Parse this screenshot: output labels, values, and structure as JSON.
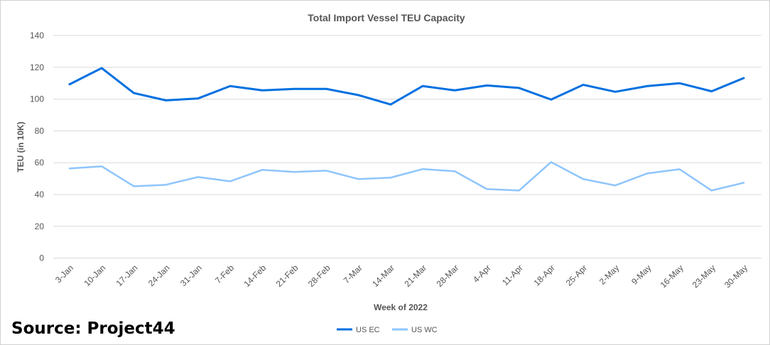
{
  "chart_data": {
    "type": "line",
    "title": "Total Import Vessel TEU Capacity",
    "xlabel": "Week of 2022",
    "ylabel": "TEU (in 10K)",
    "ylim": [
      0,
      140
    ],
    "yticks": [
      0,
      20,
      40,
      60,
      80,
      100,
      120,
      140
    ],
    "grid": true,
    "legend_position": "bottom",
    "categories": [
      "3-Jan",
      "10-Jan",
      "17-Jan",
      "24-Jan",
      "31-Jan",
      "7-Feb",
      "14-Feb",
      "21-Feb",
      "28-Feb",
      "7-Mar",
      "14-Mar",
      "21-Mar",
      "28-Mar",
      "4-Apr",
      "11-Apr",
      "18-Apr",
      "25-Apr",
      "2-May",
      "9-May",
      "16-May",
      "23-May",
      "30-May"
    ],
    "series": [
      {
        "name": "US EC",
        "color": "#0070e0",
        "values": [
          109.3,
          119.5,
          103.8,
          99.2,
          100.4,
          108.2,
          105.5,
          106.4,
          106.4,
          102.5,
          96.6,
          108.2,
          105.5,
          108.6,
          107.0,
          99.7,
          109.0,
          104.6,
          108.2,
          110.0,
          104.9,
          113.2
        ]
      },
      {
        "name": "US WC",
        "color": "#8ec5fc",
        "values": [
          56.4,
          57.7,
          45.2,
          46.1,
          51.0,
          48.3,
          55.5,
          54.2,
          55.0,
          49.7,
          50.6,
          56.0,
          54.6,
          43.4,
          42.5,
          60.4,
          49.7,
          45.7,
          53.3,
          55.9,
          42.5,
          47.4
        ]
      }
    ]
  },
  "source": "Source: Project44"
}
